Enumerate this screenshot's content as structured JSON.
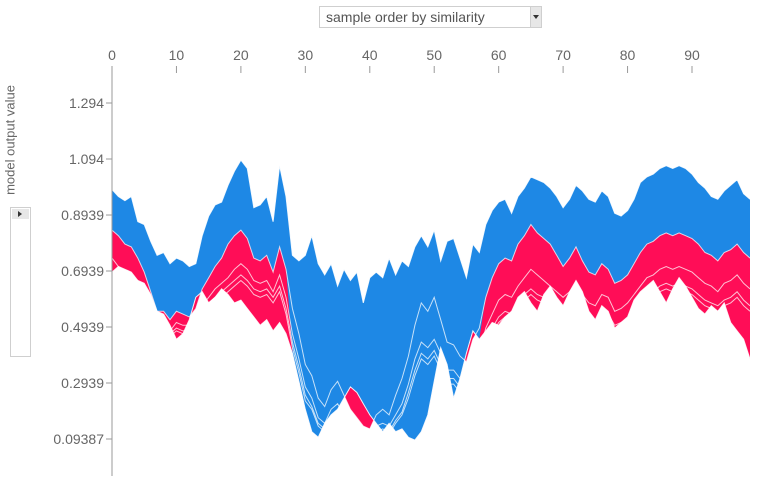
{
  "controls": {
    "sort_select": {
      "selected": "sample order by similarity"
    },
    "output_select": {
      "selected": "model output value"
    }
  },
  "colors": {
    "positive": "#ff0d57",
    "negative": "#1e88e5",
    "line": "#ffffff",
    "axis": "#999999",
    "tick_text": "#666666"
  },
  "chart_data": {
    "type": "area",
    "xlim": [
      0,
      99
    ],
    "ylim": [
      0.08,
      1.32
    ],
    "x_ticks": [
      0,
      10,
      20,
      30,
      40,
      50,
      60,
      70,
      80,
      90
    ],
    "x_tick_labels": [
      "0",
      "10",
      "20",
      "30",
      "40",
      "50",
      "60",
      "70",
      "80",
      "90"
    ],
    "y_ticks": [
      1.294,
      1.094,
      0.8939,
      0.6939,
      0.4939,
      0.2939,
      0.09387
    ],
    "y_tick_labels": [
      "1.294",
      "1.094",
      "0.8939",
      "0.6939",
      "0.4939",
      "0.2939",
      "0.09387"
    ],
    "ylabel": "model output value",
    "series": [
      {
        "values": [
          0.985,
          0.96,
          0.945,
          0.96,
          0.87,
          0.86,
          0.8,
          0.75,
          0.76,
          0.72,
          0.74,
          0.73,
          0.71,
          0.72,
          0.82,
          0.89,
          0.93,
          0.94,
          1.0,
          1.05,
          1.09,
          1.06,
          0.92,
          0.93,
          0.96,
          0.87,
          1.07,
          0.96,
          0.75,
          0.73,
          0.75,
          0.82,
          0.72,
          0.68,
          0.72,
          0.64,
          0.7,
          0.66,
          0.69,
          0.58,
          0.67,
          0.69,
          0.67,
          0.74,
          0.68,
          0.73,
          0.71,
          0.78,
          0.82,
          0.78,
          0.84,
          0.73,
          0.8,
          0.81,
          0.74,
          0.67,
          0.79,
          0.76,
          0.86,
          0.91,
          0.94,
          0.95,
          0.9,
          0.96,
          0.99,
          1.03,
          1.02,
          1.01,
          0.99,
          0.96,
          0.92,
          0.95,
          1.0,
          0.98,
          0.95,
          0.94,
          0.98,
          0.96,
          0.9,
          0.89,
          0.91,
          0.95,
          1.01,
          1.03,
          1.04,
          1.06,
          1.07,
          1.06,
          1.07,
          1.06,
          1.04,
          1.01,
          0.99,
          0.96,
          0.95,
          0.98,
          1.0,
          1.02,
          0.97,
          0.95
        ]
      },
      {
        "values": [
          0.84,
          0.82,
          0.79,
          0.78,
          0.74,
          0.69,
          0.62,
          0.55,
          0.55,
          0.52,
          0.55,
          0.54,
          0.53,
          0.56,
          0.63,
          0.67,
          0.71,
          0.74,
          0.79,
          0.82,
          0.84,
          0.81,
          0.74,
          0.73,
          0.75,
          0.69,
          0.78,
          0.7,
          0.56,
          0.47,
          0.36,
          0.32,
          0.24,
          0.21,
          0.27,
          0.3,
          0.25,
          0.2,
          0.17,
          0.14,
          0.13,
          0.18,
          0.2,
          0.18,
          0.25,
          0.31,
          0.39,
          0.5,
          0.58,
          0.55,
          0.6,
          0.52,
          0.44,
          0.43,
          0.39,
          0.37,
          0.45,
          0.49,
          0.6,
          0.67,
          0.72,
          0.74,
          0.73,
          0.79,
          0.82,
          0.86,
          0.83,
          0.81,
          0.79,
          0.75,
          0.71,
          0.74,
          0.78,
          0.73,
          0.69,
          0.68,
          0.72,
          0.7,
          0.65,
          0.66,
          0.68,
          0.72,
          0.76,
          0.79,
          0.8,
          0.82,
          0.83,
          0.82,
          0.83,
          0.82,
          0.81,
          0.79,
          0.76,
          0.75,
          0.73,
          0.76,
          0.77,
          0.79,
          0.76,
          0.74
        ]
      },
      {
        "values": [
          0.74,
          0.71,
          0.69,
          0.68,
          0.66,
          0.61,
          0.57,
          0.51,
          0.5,
          0.48,
          0.51,
          0.5,
          0.5,
          0.52,
          0.57,
          0.6,
          0.63,
          0.65,
          0.67,
          0.7,
          0.72,
          0.7,
          0.66,
          0.65,
          0.66,
          0.62,
          0.68,
          0.6,
          0.47,
          0.38,
          0.28,
          0.24,
          0.17,
          0.15,
          0.2,
          0.22,
          0.18,
          0.15,
          0.12,
          0.11,
          0.1,
          0.14,
          0.15,
          0.14,
          0.18,
          0.22,
          0.29,
          0.38,
          0.44,
          0.42,
          0.45,
          0.4,
          0.34,
          0.34,
          0.31,
          0.3,
          0.36,
          0.4,
          0.49,
          0.54,
          0.59,
          0.61,
          0.6,
          0.64,
          0.67,
          0.7,
          0.68,
          0.66,
          0.64,
          0.62,
          0.6,
          0.62,
          0.65,
          0.61,
          0.58,
          0.57,
          0.61,
          0.6,
          0.55,
          0.56,
          0.58,
          0.61,
          0.64,
          0.67,
          0.68,
          0.7,
          0.71,
          0.7,
          0.71,
          0.7,
          0.69,
          0.67,
          0.65,
          0.64,
          0.62,
          0.65,
          0.66,
          0.68,
          0.65,
          0.63
        ]
      },
      {
        "values": [
          0.69,
          0.67,
          0.66,
          0.65,
          0.63,
          0.59,
          0.55,
          0.49,
          0.48,
          0.47,
          0.49,
          0.48,
          0.48,
          0.5,
          0.55,
          0.58,
          0.6,
          0.62,
          0.64,
          0.66,
          0.68,
          0.66,
          0.63,
          0.62,
          0.63,
          0.6,
          0.64,
          0.56,
          0.44,
          0.35,
          0.25,
          0.21,
          0.15,
          0.13,
          0.17,
          0.19,
          0.16,
          0.13,
          0.11,
          0.1,
          0.09,
          0.12,
          0.13,
          0.12,
          0.16,
          0.19,
          0.26,
          0.34,
          0.4,
          0.38,
          0.41,
          0.36,
          0.31,
          0.31,
          0.28,
          0.27,
          0.32,
          0.36,
          0.44,
          0.49,
          0.53,
          0.55,
          0.54,
          0.58,
          0.61,
          0.63,
          0.61,
          0.6,
          0.58,
          0.56,
          0.54,
          0.56,
          0.59,
          0.55,
          0.52,
          0.51,
          0.55,
          0.54,
          0.5,
          0.51,
          0.52,
          0.55,
          0.58,
          0.61,
          0.62,
          0.64,
          0.65,
          0.64,
          0.65,
          0.64,
          0.63,
          0.61,
          0.59,
          0.58,
          0.57,
          0.59,
          0.6,
          0.62,
          0.59,
          0.57
        ]
      },
      {
        "values": [
          0.67,
          0.66,
          0.65,
          0.64,
          0.62,
          0.58,
          0.54,
          0.48,
          0.47,
          0.46,
          0.48,
          0.47,
          0.47,
          0.49,
          0.54,
          0.57,
          0.59,
          0.6,
          0.62,
          0.64,
          0.66,
          0.64,
          0.61,
          0.6,
          0.61,
          0.58,
          0.62,
          0.54,
          0.42,
          0.33,
          0.23,
          0.2,
          0.14,
          0.12,
          0.16,
          0.18,
          0.15,
          0.12,
          0.1,
          0.09,
          0.08,
          0.11,
          0.12,
          0.11,
          0.15,
          0.18,
          0.24,
          0.32,
          0.38,
          0.36,
          0.39,
          0.34,
          0.29,
          0.29,
          0.26,
          0.25,
          0.3,
          0.34,
          0.42,
          0.47,
          0.51,
          0.53,
          0.52,
          0.56,
          0.59,
          0.61,
          0.59,
          0.58,
          0.56,
          0.54,
          0.52,
          0.54,
          0.57,
          0.53,
          0.5,
          0.49,
          0.53,
          0.52,
          0.48,
          0.49,
          0.5,
          0.53,
          0.56,
          0.59,
          0.6,
          0.62,
          0.63,
          0.62,
          0.63,
          0.62,
          0.61,
          0.59,
          0.57,
          0.56,
          0.55,
          0.57,
          0.58,
          0.6,
          0.57,
          0.55
        ]
      },
      {
        "values": [
          0.69,
          0.71,
          0.7,
          0.69,
          0.66,
          0.65,
          0.61,
          0.55,
          0.54,
          0.5,
          0.45,
          0.47,
          0.52,
          0.6,
          0.62,
          0.58,
          0.6,
          0.63,
          0.61,
          0.58,
          0.59,
          0.56,
          0.53,
          0.5,
          0.52,
          0.48,
          0.51,
          0.47,
          0.4,
          0.3,
          0.2,
          0.12,
          0.1,
          0.15,
          0.18,
          0.2,
          0.24,
          0.28,
          0.26,
          0.22,
          0.18,
          0.15,
          0.12,
          0.15,
          0.12,
          0.13,
          0.1,
          0.09,
          0.12,
          0.18,
          0.3,
          0.42,
          0.36,
          0.24,
          0.31,
          0.4,
          0.48,
          0.45,
          0.48,
          0.51,
          0.5,
          0.53,
          0.55,
          0.6,
          0.62,
          0.58,
          0.55,
          0.61,
          0.64,
          0.6,
          0.57,
          0.62,
          0.66,
          0.62,
          0.55,
          0.52,
          0.57,
          0.55,
          0.49,
          0.51,
          0.53,
          0.59,
          0.62,
          0.64,
          0.66,
          0.62,
          0.58,
          0.63,
          0.67,
          0.64,
          0.6,
          0.56,
          0.54,
          0.57,
          0.55,
          0.58,
          0.51,
          0.48,
          0.45,
          0.38
        ]
      }
    ],
    "base_series_index": 2
  }
}
